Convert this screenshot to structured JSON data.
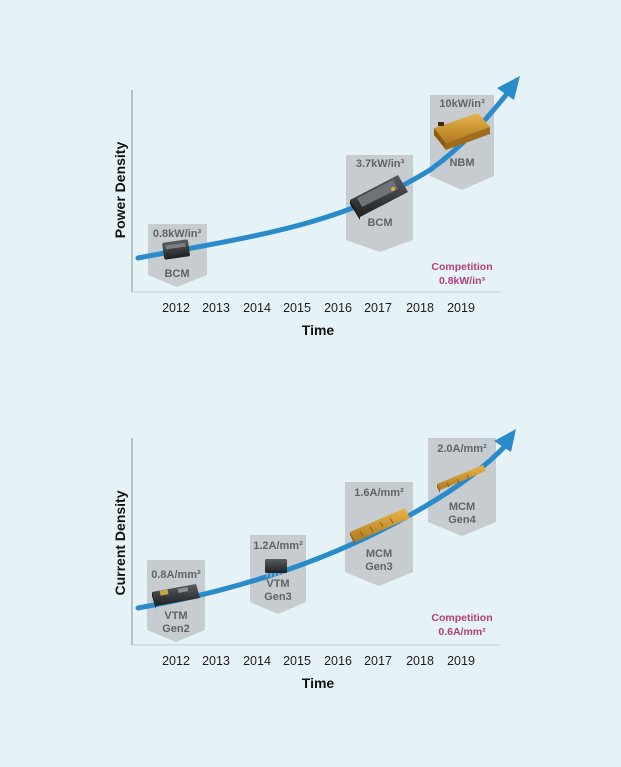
{
  "chart_data": [
    {
      "type": "line",
      "title": "",
      "ylabel": "Power Density",
      "xlabel": "Time",
      "categories": [
        "2012",
        "2013",
        "2014",
        "2015",
        "2016",
        "2017",
        "2018",
        "2019"
      ],
      "trend": "exponential growth arrow",
      "products": [
        {
          "year": "2012",
          "name_lines": [
            "BCM"
          ],
          "density": "0.8kW/in³"
        },
        {
          "year": "2017",
          "name_lines": [
            "BCM"
          ],
          "density": "3.7kW/in³"
        },
        {
          "year": "2019",
          "name_lines": [
            "NBM"
          ],
          "density": "10kW/in³"
        }
      ],
      "competition": {
        "label": "Competition",
        "value": "0.8kW/in³"
      },
      "colors": {
        "trend": "#2a8bcb",
        "badge": "#c6ccd0",
        "competition": "#b23f79"
      }
    },
    {
      "type": "line",
      "title": "",
      "ylabel": "Current Density",
      "xlabel": "Time",
      "categories": [
        "2012",
        "2013",
        "2014",
        "2015",
        "2016",
        "2017",
        "2018",
        "2019"
      ],
      "trend": "exponential growth arrow",
      "products": [
        {
          "year": "2012",
          "name_lines": [
            "VTM",
            "Gen2"
          ],
          "density": "0.8A/mm²"
        },
        {
          "year": "2014",
          "name_lines": [
            "VTM",
            "Gen3"
          ],
          "density": "1.2A/mm²"
        },
        {
          "year": "2017",
          "name_lines": [
            "MCM",
            "Gen3"
          ],
          "density": "1.6A/mm²"
        },
        {
          "year": "2019",
          "name_lines": [
            "MCM",
            "Gen4"
          ],
          "density": "2.0A/mm²"
        }
      ],
      "competition": {
        "label": "Competition",
        "value": "0.6A/mm²"
      },
      "colors": {
        "trend": "#2a8bcb",
        "badge": "#c6ccd0",
        "competition": "#b23f79"
      }
    }
  ]
}
